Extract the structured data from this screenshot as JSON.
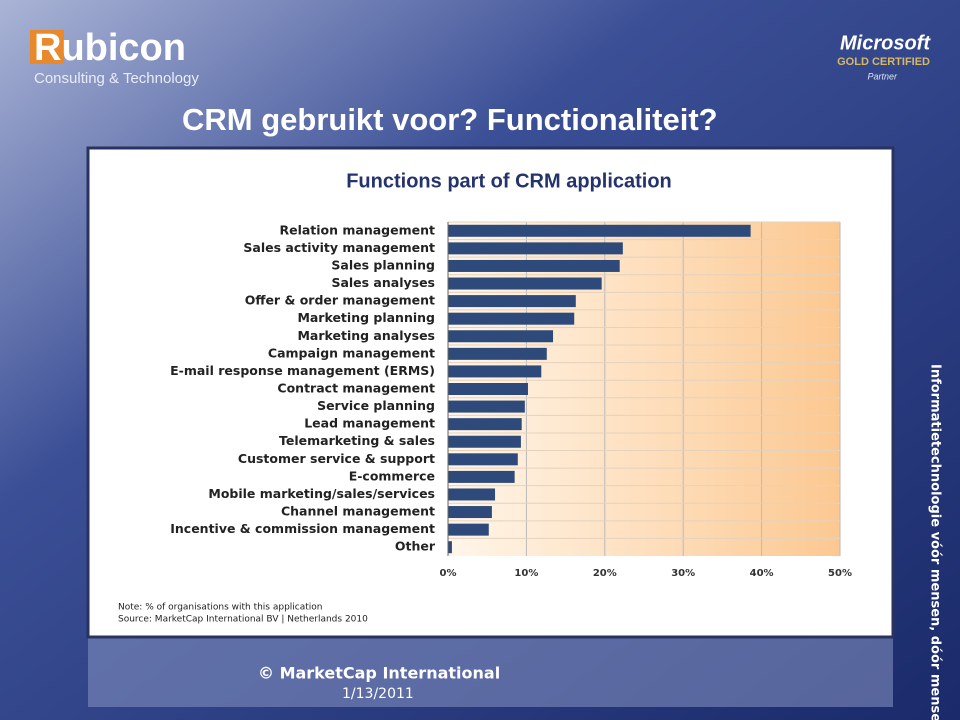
{
  "logo": {
    "name": "Rubicon",
    "tagline": "Consulting & Technology"
  },
  "partner": {
    "brand": "Microsoft",
    "level": "GOLD CERTIFIED",
    "kind": "Partner"
  },
  "slide_title": "CRM gebruikt voor? Functionaliteit?",
  "side_text": "Informatietechnologie vóór mensen, dóór mensen!",
  "footer": {
    "copyright": "© MarketCap International",
    "date": "1/13/2011"
  },
  "chart_data": {
    "type": "bar",
    "orientation": "horizontal",
    "title": "Functions part of CRM application",
    "categories": [
      "Relation management",
      "Sales activity management",
      "Sales planning",
      "Sales analyses",
      "Offer & order management",
      "Marketing planning",
      "Marketing analyses",
      "Campaign management",
      "E-mail response management (ERMS)",
      "Contract management",
      "Service planning",
      "Lead management",
      "Telemarketing & sales",
      "Customer service & support",
      "E-commerce",
      "Mobile marketing/sales/services",
      "Channel management",
      "Incentive & commission management",
      "Other"
    ],
    "values": [
      38.6,
      22.3,
      21.9,
      19.6,
      16.3,
      16.1,
      13.4,
      12.6,
      11.9,
      10.2,
      9.8,
      9.4,
      9.3,
      8.9,
      8.5,
      6.0,
      5.6,
      5.2,
      0.5
    ],
    "color": "#2e4a7a",
    "xlim": [
      0,
      50
    ],
    "xticks": [
      {
        "value": 0,
        "label": "0%"
      },
      {
        "value": 10,
        "label": "10%"
      },
      {
        "value": 20,
        "label": "20%"
      },
      {
        "value": 30,
        "label": "30%"
      },
      {
        "value": 40,
        "label": "40%"
      },
      {
        "value": 50,
        "label": "50%"
      }
    ],
    "grid": true,
    "notes": [
      "Note: % of organisations with this application",
      "Source: MarketCap International BV | Netherlands 2010"
    ]
  }
}
